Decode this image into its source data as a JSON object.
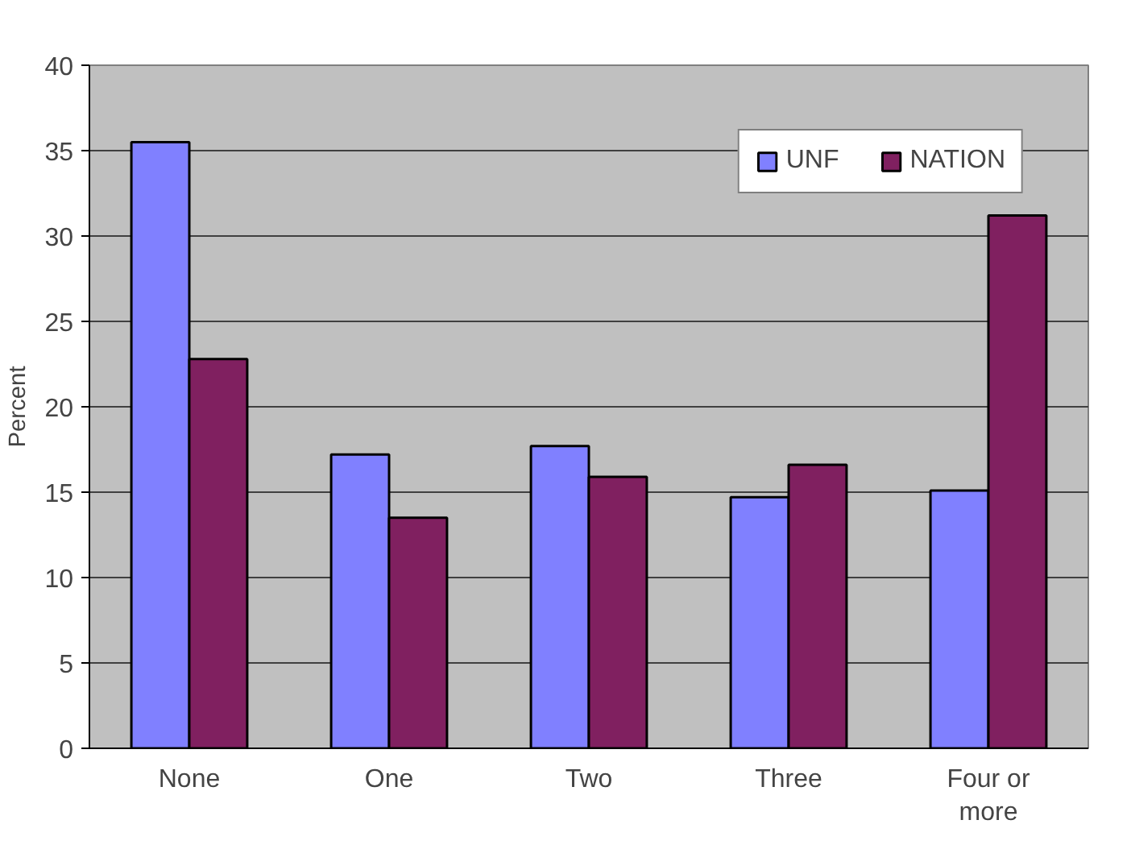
{
  "chart_data": {
    "type": "bar",
    "ylabel": "Percent",
    "categories": [
      "None",
      "One",
      "Two",
      "Three",
      "Four or more"
    ],
    "series": [
      {
        "name": "UNF",
        "color": "#8080ff",
        "values": [
          35.5,
          17.2,
          17.7,
          14.7,
          15.1
        ]
      },
      {
        "name": "NATION",
        "color": "#802060",
        "values": [
          22.8,
          13.5,
          15.9,
          16.6,
          31.2
        ]
      }
    ],
    "ylim": [
      0,
      40
    ],
    "yticks": [
      0,
      5,
      10,
      15,
      20,
      25,
      30,
      35,
      40
    ],
    "grid": "y",
    "legend": "top right"
  }
}
